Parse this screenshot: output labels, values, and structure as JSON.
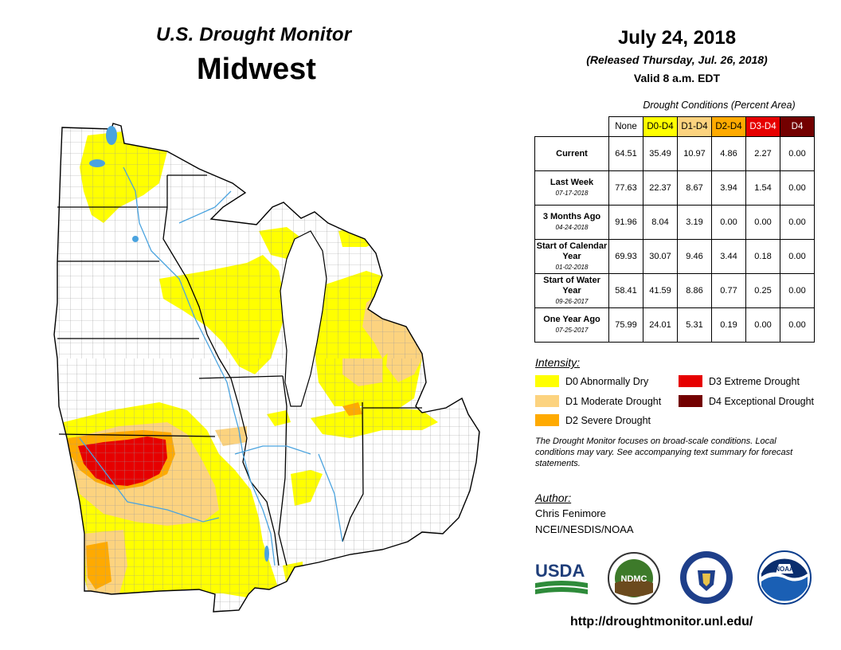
{
  "header": {
    "title": "U.S. Drought Monitor",
    "region": "Midwest",
    "date": "July 24, 2018",
    "released": "(Released Thursday, Jul. 26, 2018)",
    "valid": "Valid 8 a.m. EDT"
  },
  "colors": {
    "none": "#ffffff",
    "d0": "#ffff00",
    "d1": "#fcd37f",
    "d2": "#ffaa00",
    "d3": "#e60000",
    "d4": "#730000",
    "water": "#4aa3df",
    "county_border": "#9a9a9a"
  },
  "conditions": {
    "title": "Drought Conditions (Percent Area)",
    "columns": [
      "None",
      "D0-D4",
      "D1-D4",
      "D2-D4",
      "D3-D4",
      "D4"
    ],
    "rows": [
      {
        "label": "Current",
        "date": "",
        "values": [
          "64.51",
          "35.49",
          "10.97",
          "4.86",
          "2.27",
          "0.00"
        ]
      },
      {
        "label": "Last Week",
        "date": "07-17-2018",
        "values": [
          "77.63",
          "22.37",
          "8.67",
          "3.94",
          "1.54",
          "0.00"
        ]
      },
      {
        "label": "3 Months Ago",
        "date": "04-24-2018",
        "values": [
          "91.96",
          "8.04",
          "3.19",
          "0.00",
          "0.00",
          "0.00"
        ]
      },
      {
        "label": "Start of Calendar Year",
        "date": "01-02-2018",
        "values": [
          "69.93",
          "30.07",
          "9.46",
          "3.44",
          "0.18",
          "0.00"
        ]
      },
      {
        "label": "Start of Water Year",
        "date": "09-26-2017",
        "values": [
          "58.41",
          "41.59",
          "8.86",
          "0.77",
          "0.25",
          "0.00"
        ]
      },
      {
        "label": "One Year Ago",
        "date": "07-25-2017",
        "values": [
          "75.99",
          "24.01",
          "5.31",
          "0.19",
          "0.00",
          "0.00"
        ]
      }
    ]
  },
  "legend": {
    "title": "Intensity:",
    "items": [
      {
        "label": "D0 Abnormally Dry",
        "color": "#ffff00"
      },
      {
        "label": "D1 Moderate Drought",
        "color": "#fcd37f"
      },
      {
        "label": "D2 Severe Drought",
        "color": "#ffaa00"
      },
      {
        "label": "D3 Extreme Drought",
        "color": "#e60000"
      },
      {
        "label": "D4 Exceptional Drought",
        "color": "#730000"
      }
    ]
  },
  "note": "The Drought Monitor focuses on broad-scale conditions. Local conditions may vary. See accompanying text summary for forecast statements.",
  "author": {
    "title": "Author:",
    "name": "Chris Fenimore",
    "org": "NCEI/NESDIS/NOAA"
  },
  "logos": {
    "usda": "USDA",
    "ndmc": "NDMC",
    "noaa": "NOAA"
  },
  "url": "http://droughtmonitor.unl.edu/"
}
